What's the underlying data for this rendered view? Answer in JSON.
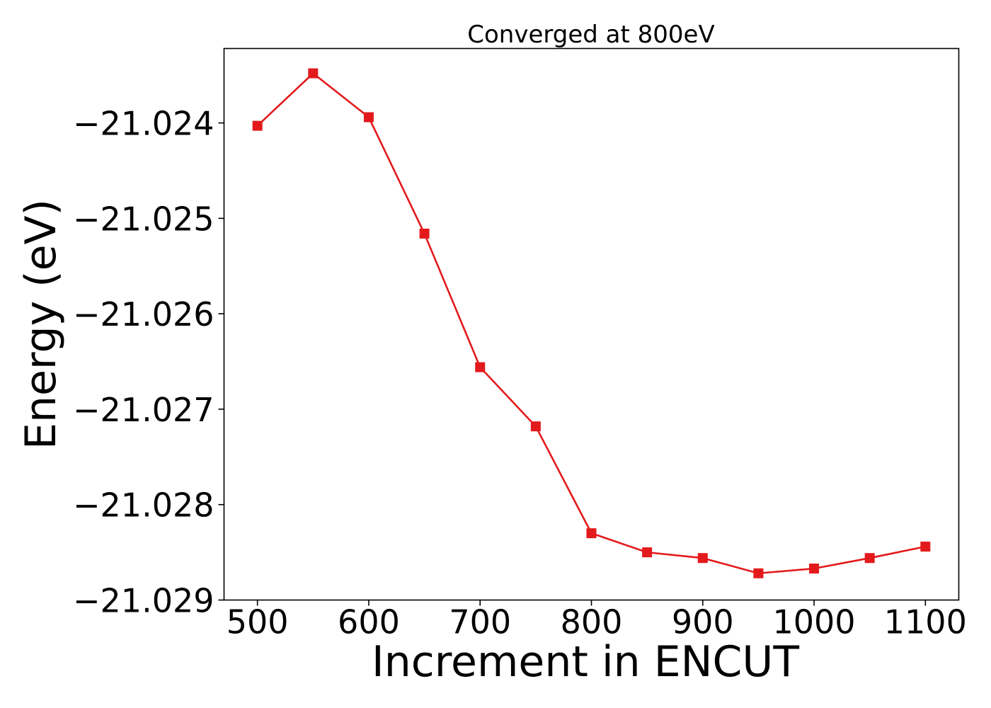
{
  "chart_data": {
    "type": "line",
    "title": "Converged at 800eV",
    "xlabel": "Increment in ENCUT",
    "ylabel": "Energy (eV)",
    "xlim": [
      470,
      1130
    ],
    "ylim": [
      -21.029,
      -21.02322
    ],
    "xticks": [
      500,
      600,
      700,
      800,
      900,
      1000,
      1100
    ],
    "xtick_labels": [
      "500",
      "600",
      "700",
      "800",
      "900",
      "1000",
      "1100"
    ],
    "yticks": [
      -21.029,
      -21.028,
      -21.027,
      -21.026,
      -21.025,
      -21.024
    ],
    "ytick_labels": [
      "−21.029",
      "−21.028",
      "−21.027",
      "−21.026",
      "−21.025",
      "−21.024"
    ],
    "grid": false,
    "series": [
      {
        "color": "#e31a1c",
        "marker": "square",
        "x": [
          500,
          550,
          600,
          650,
          700,
          750,
          800,
          850,
          900,
          950,
          1000,
          1050,
          1100
        ],
        "y": [
          -21.02403,
          -21.02348,
          -21.02394,
          -21.02516,
          -21.02656,
          -21.02718,
          -21.0283,
          -21.0285,
          -21.02856,
          -21.02872,
          -21.02867,
          -21.02856,
          -21.02844
        ]
      }
    ]
  }
}
